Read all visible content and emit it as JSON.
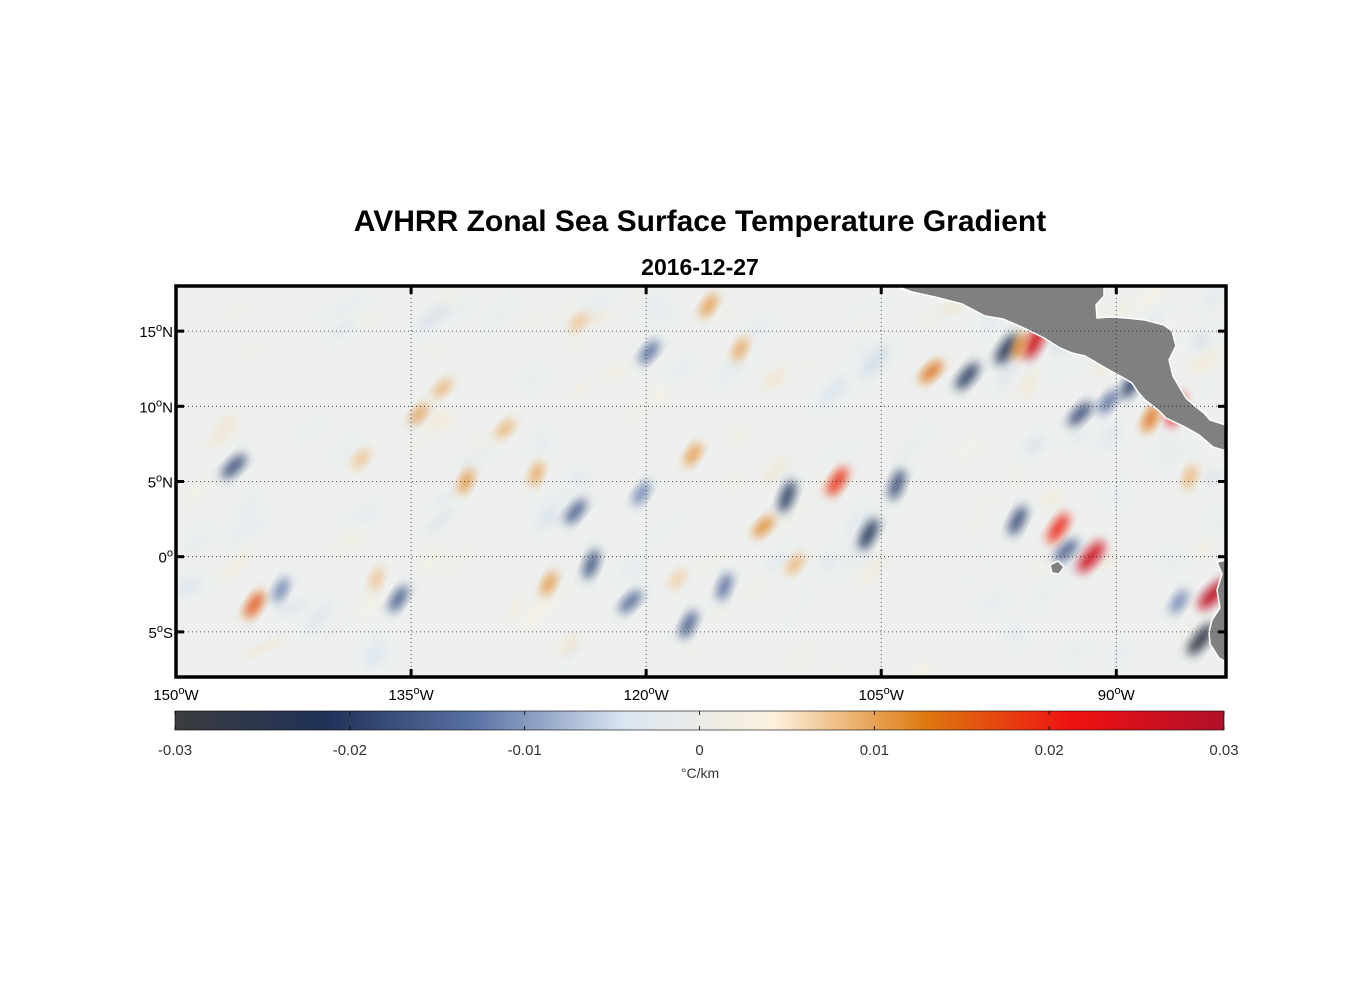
{
  "title": "AVHRR Zonal Sea Surface Temperature Gradient",
  "subtitle": "2016-12-27",
  "map": {
    "lon_range": [
      -150,
      -83
    ],
    "lat_range": [
      -8,
      18
    ],
    "lat_ticks": [
      {
        "lat": 15,
        "deg": "15",
        "hemi": "N"
      },
      {
        "lat": 10,
        "deg": "10",
        "hemi": "N"
      },
      {
        "lat": 5,
        "deg": "5",
        "hemi": "N"
      },
      {
        "lat": 0,
        "deg": "0",
        "hemi": ""
      },
      {
        "lat": -5,
        "deg": "5",
        "hemi": "S"
      }
    ],
    "lon_ticks": [
      {
        "lon": -150,
        "deg": "150",
        "hemi": "W"
      },
      {
        "lon": -135,
        "deg": "135",
        "hemi": "W"
      },
      {
        "lon": -120,
        "deg": "120",
        "hemi": "W"
      },
      {
        "lon": -105,
        "deg": "105",
        "hemi": "W"
      },
      {
        "lon": -90,
        "deg": "90",
        "hemi": "W"
      }
    ],
    "grid": "dotted",
    "land_color": "#808080",
    "gradient_features": [
      {
        "lon": -146.3,
        "lat": 6.0,
        "value": -0.018
      },
      {
        "lon": -138.2,
        "lat": 6.5,
        "value": 0.008
      },
      {
        "lon": -145.0,
        "lat": -3.2,
        "value": 0.016
      },
      {
        "lon": -143.3,
        "lat": -2.2,
        "value": -0.012
      },
      {
        "lon": -137.2,
        "lat": -1.5,
        "value": 0.008
      },
      {
        "lon": -133.0,
        "lat": 11.2,
        "value": 0.009
      },
      {
        "lon": -134.5,
        "lat": 9.5,
        "value": 0.01
      },
      {
        "lon": -135.8,
        "lat": -2.8,
        "value": -0.016
      },
      {
        "lon": -131.5,
        "lat": 5.0,
        "value": 0.011
      },
      {
        "lon": -127.0,
        "lat": 5.5,
        "value": 0.01
      },
      {
        "lon": -129.0,
        "lat": 8.5,
        "value": 0.009
      },
      {
        "lon": -124.5,
        "lat": 3.0,
        "value": -0.016
      },
      {
        "lon": -120.3,
        "lat": 4.2,
        "value": -0.012
      },
      {
        "lon": -126.2,
        "lat": -1.8,
        "value": 0.011
      },
      {
        "lon": -123.5,
        "lat": -0.5,
        "value": -0.017
      },
      {
        "lon": -121.0,
        "lat": -3.0,
        "value": -0.015
      },
      {
        "lon": -118.0,
        "lat": -1.5,
        "value": 0.007
      },
      {
        "lon": -117.0,
        "lat": 6.8,
        "value": 0.011
      },
      {
        "lon": -117.3,
        "lat": -4.5,
        "value": -0.016
      },
      {
        "lon": -115.0,
        "lat": -2.0,
        "value": -0.014
      },
      {
        "lon": -124.3,
        "lat": 15.6,
        "value": 0.008
      },
      {
        "lon": -119.8,
        "lat": 13.6,
        "value": -0.014
      },
      {
        "lon": -116.0,
        "lat": 16.7,
        "value": 0.011
      },
      {
        "lon": -114.0,
        "lat": 13.8,
        "value": 0.01
      },
      {
        "lon": -111.0,
        "lat": 4.0,
        "value": -0.02
      },
      {
        "lon": -112.5,
        "lat": 2.0,
        "value": 0.012
      },
      {
        "lon": -110.5,
        "lat": -0.5,
        "value": 0.009
      },
      {
        "lon": -107.8,
        "lat": 5.0,
        "value": 0.019
      },
      {
        "lon": -105.8,
        "lat": 1.5,
        "value": -0.021
      },
      {
        "lon": -104.0,
        "lat": 4.8,
        "value": -0.018
      },
      {
        "lon": -101.8,
        "lat": 12.3,
        "value": 0.014
      },
      {
        "lon": -99.5,
        "lat": 12.0,
        "value": -0.02
      },
      {
        "lon": -97.0,
        "lat": 13.8,
        "value": -0.022
      },
      {
        "lon": -95.2,
        "lat": 14.3,
        "value": 0.026
      },
      {
        "lon": -96.2,
        "lat": 14.0,
        "value": 0.012
      },
      {
        "lon": -92.3,
        "lat": 9.5,
        "value": -0.018
      },
      {
        "lon": -90.5,
        "lat": 10.3,
        "value": -0.014
      },
      {
        "lon": -89.0,
        "lat": 11.5,
        "value": -0.02
      },
      {
        "lon": -87.8,
        "lat": 9.2,
        "value": 0.014
      },
      {
        "lon": -86.2,
        "lat": 9.8,
        "value": 0.022
      },
      {
        "lon": -93.2,
        "lat": 0.4,
        "value": -0.016
      },
      {
        "lon": -91.6,
        "lat": 0.0,
        "value": 0.026
      },
      {
        "lon": -93.7,
        "lat": 1.9,
        "value": 0.02
      },
      {
        "lon": -96.3,
        "lat": 2.4,
        "value": -0.018
      },
      {
        "lon": -85.3,
        "lat": 5.3,
        "value": 0.009
      },
      {
        "lon": -83.8,
        "lat": -2.5,
        "value": 0.028
      },
      {
        "lon": -84.6,
        "lat": -5.5,
        "value": -0.027
      },
      {
        "lon": -86.0,
        "lat": -3.0,
        "value": -0.012
      }
    ]
  },
  "colorbar": {
    "min": -0.03,
    "max": 0.03,
    "ticks": [
      "-0.03",
      "-0.02",
      "-0.01",
      "0",
      "0.01",
      "0.02",
      "0.03"
    ],
    "tick_values": [
      -0.03,
      -0.02,
      -0.01,
      0,
      0.01,
      0.02,
      0.03
    ],
    "label": "°C/km",
    "colors": [
      "#3c3c3f",
      "#1f3157",
      "#5a72a5",
      "#dbe6f2",
      "#fbf1de",
      "#dd7a10",
      "#ee1111",
      "#b0102a"
    ]
  }
}
